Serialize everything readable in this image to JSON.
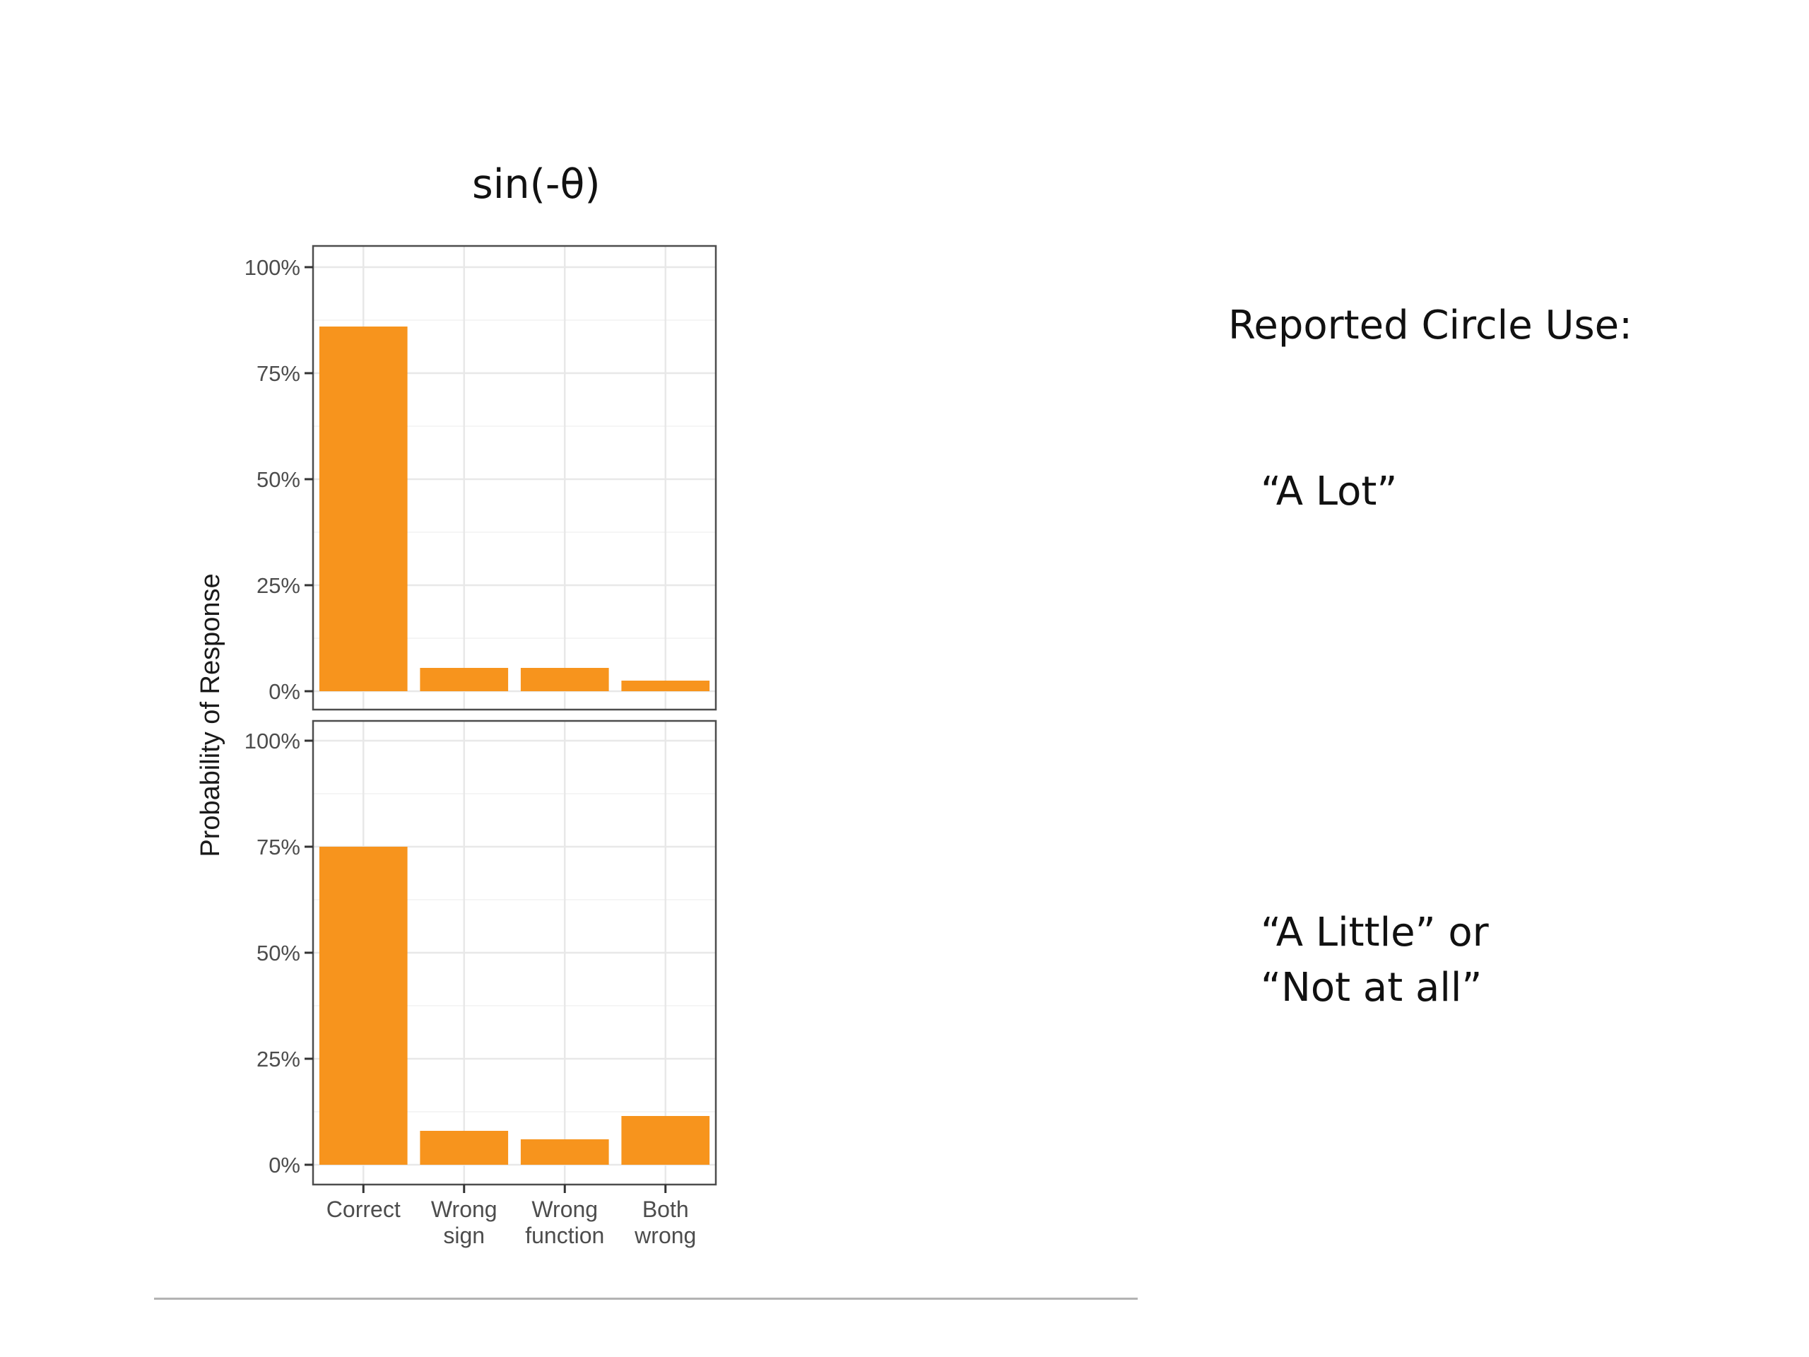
{
  "slide": {
    "side_title": "Reported Circle Use:",
    "group_labels": [
      "“A Lot”",
      "“A Little” or",
      "“Not at all”"
    ]
  },
  "chart_data": {
    "type": "bar",
    "title": "sin(-θ)",
    "xlabel": "",
    "ylabel": "Probability of Response",
    "categories": [
      "Correct",
      "Wrong sign",
      "Wrong function",
      "Both wrong"
    ],
    "category_label_lines": [
      [
        "Correct"
      ],
      [
        "Wrong",
        "sign"
      ],
      [
        "Wrong",
        "function"
      ],
      [
        "Both",
        "wrong"
      ]
    ],
    "ylim": [
      0,
      100
    ],
    "yticks": [
      0,
      25,
      50,
      75,
      100
    ],
    "ytick_labels": [
      "0%",
      "25%",
      "50%",
      "75%",
      "100%"
    ],
    "grid": true,
    "bar_color": "#f7941d",
    "panels": [
      {
        "name": "“A Lot”",
        "values": [
          86,
          5.5,
          5.5,
          2.5
        ]
      },
      {
        "name": "“A Little” or “Not at all”",
        "values": [
          75,
          8,
          6,
          11.5
        ]
      }
    ]
  }
}
